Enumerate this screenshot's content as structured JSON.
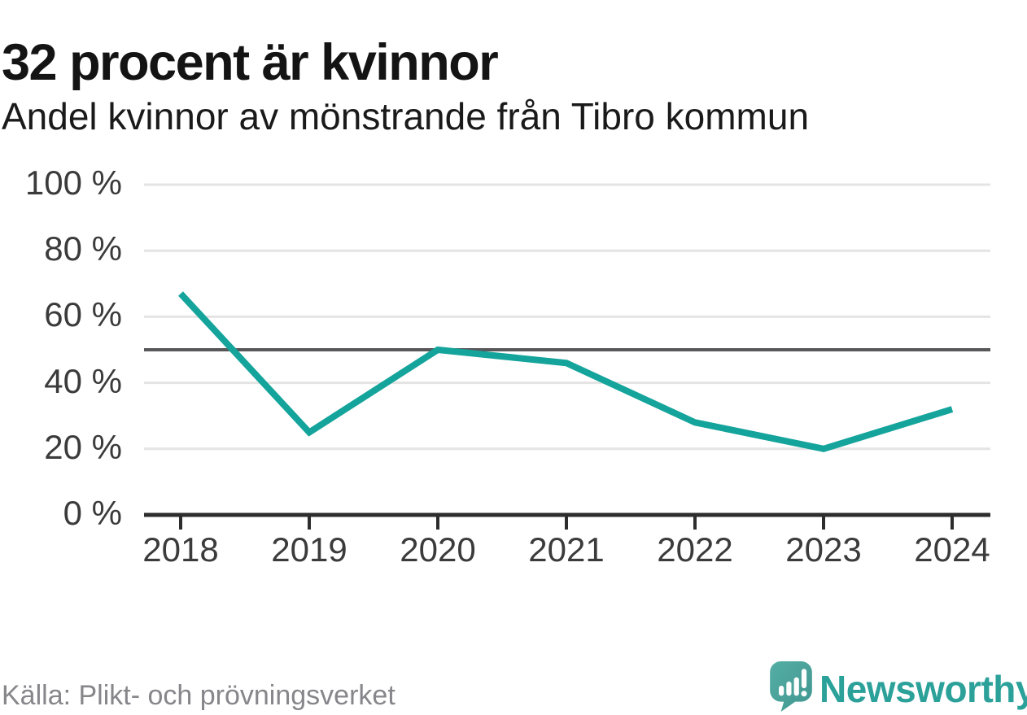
{
  "header": {
    "title": "32 procent är kvinnor",
    "subtitle": "Andel kvinnor av mönstrande från Tibro kommun"
  },
  "footer": {
    "source": "Källa: Plikt- och prövningsverket",
    "brand_name": "Newsworthy"
  },
  "colors": {
    "line": "#14a49b",
    "grid": "#e4e4e4",
    "reference_line": "#58585a",
    "axis": "#2d2d2d",
    "axis_text": "#3b3b3b",
    "title_text": "#141414",
    "source_text": "#86868b",
    "logo_teal": "#47a29b",
    "logo_text_teal": "#2ba19a"
  },
  "chart_data": {
    "type": "line",
    "title": "32 procent är kvinnor",
    "subtitle": "Andel kvinnor av mönstrande från Tibro kommun",
    "categories": [
      "2018",
      "2019",
      "2020",
      "2021",
      "2022",
      "2023",
      "2024"
    ],
    "series": [
      {
        "name": "Andel kvinnor av mönstrande",
        "values": [
          67,
          25,
          50,
          46,
          28,
          20,
          32
        ]
      }
    ],
    "unit": "%",
    "ylim": [
      0,
      100
    ],
    "yticks": [
      0,
      20,
      40,
      60,
      80,
      100
    ],
    "ytick_labels": [
      "0 %",
      "20 %",
      "40 %",
      "60 %",
      "80 %",
      "100 %"
    ],
    "reference_line_y": 50,
    "grid": true,
    "legend_position": "none",
    "source": "Källa: Plikt- och prövningsverket"
  }
}
